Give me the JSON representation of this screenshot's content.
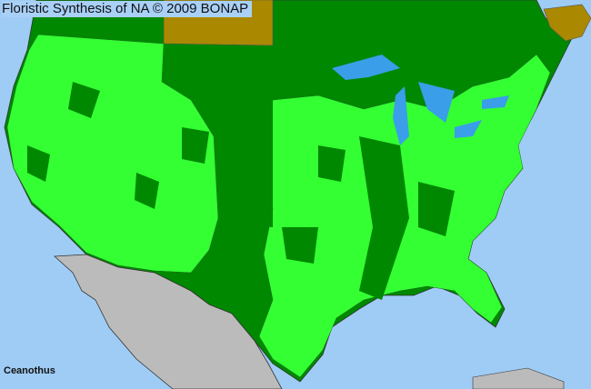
{
  "title": "Floristic Synthesis of NA © 2009 BONAP",
  "taxon": "Ceanothus",
  "colors": {
    "ocean": "#9fccf5",
    "present_county": "#33ff33",
    "present_state": "#008800",
    "not_present_region": "#aa8800",
    "outside_range": "#bbbbbb"
  }
}
